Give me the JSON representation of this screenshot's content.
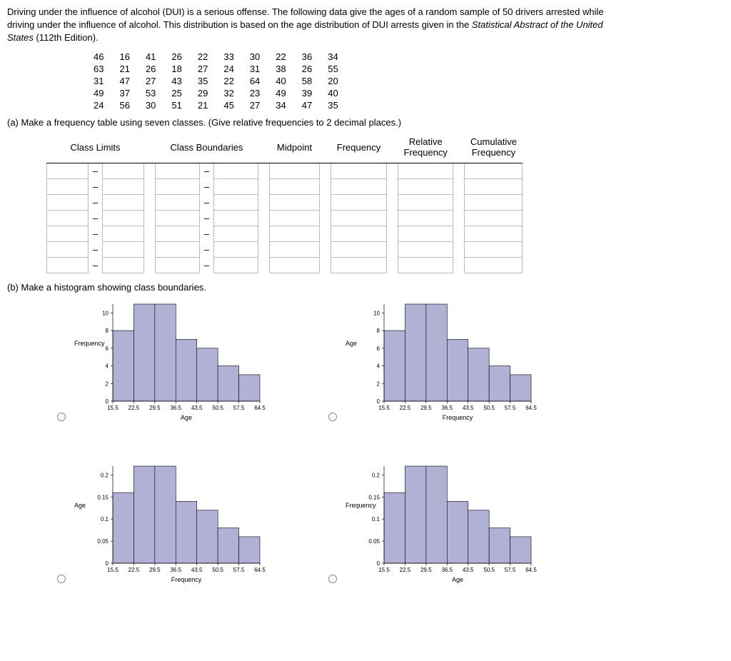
{
  "intro": {
    "line1a": "Driving under the influence of alcohol (DUI) is a serious offense. The following data give the ages of a random sample of 50 drivers arrested while",
    "line2a": "driving under the influence of alcohol. This distribution is based on the age distribution of DUI arrests given in the ",
    "emph": "Statistical Abstract of the United",
    "line3a": "States",
    "line3b": " (112th Edition)."
  },
  "data_rows": [
    [
      46,
      16,
      41,
      26,
      22,
      33,
      30,
      22,
      36,
      34
    ],
    [
      63,
      21,
      26,
      18,
      27,
      24,
      31,
      38,
      26,
      55
    ],
    [
      31,
      47,
      27,
      43,
      35,
      22,
      64,
      40,
      58,
      20
    ],
    [
      49,
      37,
      53,
      25,
      29,
      32,
      23,
      49,
      39,
      40
    ],
    [
      24,
      56,
      30,
      51,
      21,
      45,
      27,
      34,
      47,
      35
    ]
  ],
  "part_a": "(a) Make a frequency table using seven classes. (Give relative frequencies to 2 decimal places.)",
  "freq_headers": {
    "cl": "Class Limits",
    "cb": "Class Boundaries",
    "mp": "Midpoint",
    "fr": "Frequency",
    "rf1": "Relative",
    "rf2": "Frequency",
    "cf1": "Cumulative",
    "cf2": "Frequency"
  },
  "part_b": "(b) Make a histogram showing class boundaries.",
  "charts": {
    "boundaries": [
      15.5,
      22.5,
      29.5,
      36.5,
      43.5,
      50.5,
      57.5,
      64.5
    ],
    "x_tick_labels": [
      "15.5",
      "22.5",
      "29.5",
      "36.5",
      "43.5",
      "50.5",
      "57.5",
      "64.5"
    ],
    "bar_color": "#b1b1d6",
    "bar_stroke": "#000000",
    "c1": {
      "ylab": "Frequency",
      "xlab": "Age",
      "y_ticks": [
        0,
        2,
        4,
        6,
        8,
        10
      ],
      "ymax": 11,
      "values": [
        8,
        11,
        11,
        7,
        6,
        4,
        3
      ]
    },
    "c2": {
      "ylab": "Age",
      "xlab": "Frequency",
      "y_ticks": [
        0,
        2,
        4,
        6,
        8,
        10
      ],
      "ymax": 11,
      "values": [
        8,
        11,
        11,
        7,
        6,
        4,
        3
      ]
    },
    "c3": {
      "ylab": "Age",
      "xlab": "Frequency",
      "y_ticks": [
        0,
        0.05,
        0.1,
        0.15,
        0.2
      ],
      "ymax": 0.22,
      "values": [
        0.16,
        0.22,
        0.22,
        0.14,
        0.12,
        0.08,
        0.06
      ]
    },
    "c4": {
      "ylab": "Frequency",
      "xlab": "Age",
      "y_ticks": [
        0,
        0.05,
        0.1,
        0.15,
        0.2
      ],
      "ymax": 0.22,
      "values": [
        0.16,
        0.22,
        0.22,
        0.14,
        0.12,
        0.08,
        0.06
      ]
    }
  }
}
